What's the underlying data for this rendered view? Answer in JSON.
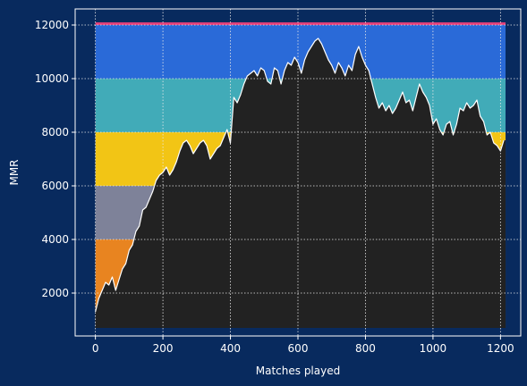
{
  "chart_data": {
    "type": "area",
    "xlabel": "Matches played",
    "ylabel": "MMR",
    "xlim": [
      -60,
      1260
    ],
    "ylim": [
      400,
      12600
    ],
    "grid": true,
    "x_ticks": [
      0,
      200,
      400,
      600,
      800,
      1000,
      1200
    ],
    "y_ticks": [
      2000,
      4000,
      6000,
      8000,
      10000,
      12000
    ],
    "floor": 700,
    "bands": [
      {
        "name": "orange",
        "from": 700,
        "to": 4000,
        "color": "#e88420"
      },
      {
        "name": "gray",
        "from": 4000,
        "to": 6000,
        "color": "#7e8299"
      },
      {
        "name": "yellow",
        "from": 6000,
        "to": 8000,
        "color": "#f2c515"
      },
      {
        "name": "teal",
        "from": 8000,
        "to": 10000,
        "color": "#41abb8"
      },
      {
        "name": "blue",
        "from": 10000,
        "to": 12050,
        "color": "#2a6ad8"
      }
    ],
    "band_x_range": [
      0,
      1215
    ],
    "top_line": {
      "value": 12050,
      "color": "#e0407a"
    },
    "series": [
      {
        "x": [
          0,
          10,
          20,
          30,
          40,
          50,
          60,
          70,
          80,
          90,
          100,
          110,
          120,
          130,
          140,
          150,
          160,
          170,
          180,
          190,
          200,
          210,
          220,
          230,
          240,
          250,
          260,
          270,
          280,
          290,
          300,
          310,
          320,
          330,
          340,
          350,
          360,
          370,
          380,
          390,
          400,
          410,
          420,
          430,
          440,
          450,
          460,
          470,
          480,
          490,
          500,
          510,
          520,
          530,
          540,
          550,
          560,
          570,
          580,
          590,
          600,
          610,
          620,
          630,
          640,
          650,
          660,
          670,
          680,
          690,
          700,
          710,
          720,
          730,
          740,
          750,
          760,
          770,
          780,
          790,
          800,
          810,
          820,
          830,
          840,
          850,
          860,
          870,
          880,
          890,
          900,
          910,
          920,
          930,
          940,
          950,
          960,
          970,
          980,
          990,
          1000,
          1010,
          1020,
          1030,
          1040,
          1050,
          1060,
          1070,
          1080,
          1090,
          1100,
          1110,
          1120,
          1130,
          1140,
          1150,
          1160,
          1170,
          1180,
          1190,
          1200,
          1210
        ],
        "y": [
          1300,
          1800,
          2100,
          2400,
          2300,
          2600,
          2100,
          2500,
          2900,
          3100,
          3600,
          3800,
          4300,
          4500,
          5100,
          5200,
          5500,
          5800,
          6200,
          6400,
          6500,
          6700,
          6400,
          6600,
          6900,
          7300,
          7600,
          7700,
          7500,
          7200,
          7400,
          7600,
          7700,
          7500,
          7000,
          7200,
          7400,
          7500,
          7800,
          8100,
          7600,
          9300,
          9100,
          9400,
          9800,
          10100,
          10200,
          10300,
          10100,
          10400,
          10300,
          9900,
          9800,
          10400,
          10300,
          9800,
          10300,
          10600,
          10500,
          10800,
          10600,
          10200,
          10700,
          11000,
          11200,
          11400,
          11500,
          11300,
          11000,
          10700,
          10500,
          10200,
          10600,
          10400,
          10100,
          10500,
          10300,
          10900,
          11200,
          10800,
          10500,
          10300,
          9800,
          9300,
          8900,
          9100,
          8800,
          9000,
          8700,
          8900,
          9200,
          9500,
          9100,
          9200,
          8800,
          9300,
          9800,
          9500,
          9300,
          9000,
          8300,
          8500,
          8100,
          7900,
          8300,
          8400,
          7900,
          8300,
          8900,
          8800,
          9100,
          8900,
          9000,
          9200,
          8600,
          8400,
          7900,
          8000,
          7600,
          7500,
          7300,
          7700
        ]
      }
    ]
  }
}
